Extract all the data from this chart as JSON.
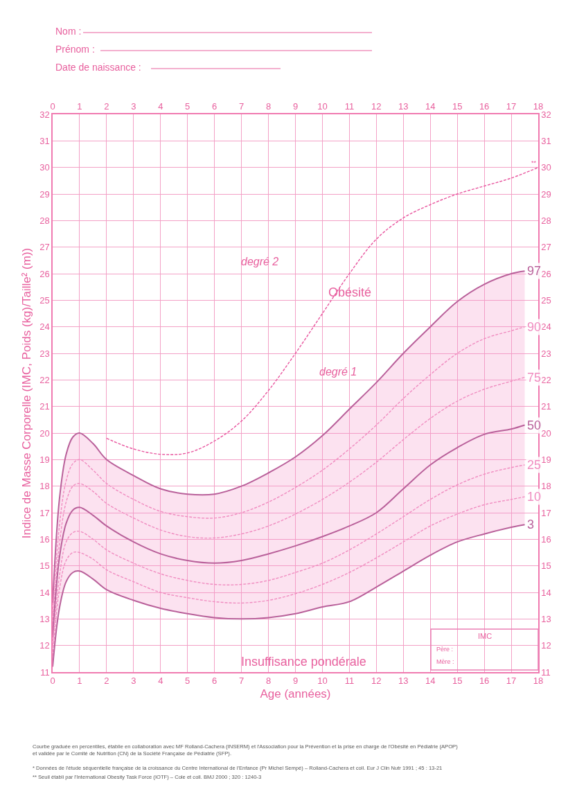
{
  "chart_data": {
    "type": "line",
    "xlabel": "Age (années)",
    "ylabel": "Indice de Masse Corporelle (IMC, Poids (kg)/Taille² (m))",
    "x": [
      0,
      0.25,
      0.5,
      0.75,
      1,
      1.5,
      2,
      3,
      4,
      5,
      6,
      7,
      8,
      9,
      10,
      11,
      12,
      13,
      14,
      15,
      16,
      17,
      17.5
    ],
    "series": [
      {
        "name": "97",
        "color": "#b9609a",
        "line_style": "solid",
        "values": [
          13.6,
          17.5,
          19.2,
          19.85,
          20.0,
          19.6,
          19.0,
          18.4,
          17.9,
          17.7,
          17.7,
          18.0,
          18.5,
          19.1,
          19.9,
          20.9,
          21.9,
          23.0,
          24.0,
          24.95,
          25.6,
          26.0,
          26.1
        ]
      },
      {
        "name": "90",
        "color": "#f08cc0",
        "line_style": "dashed",
        "values": [
          13.2,
          16.5,
          18.2,
          18.85,
          19.0,
          18.6,
          18.1,
          17.5,
          17.05,
          16.85,
          16.8,
          17.0,
          17.4,
          17.95,
          18.6,
          19.4,
          20.3,
          21.3,
          22.2,
          23.0,
          23.55,
          23.85,
          24.0
        ]
      },
      {
        "name": "75",
        "color": "#f08cc0",
        "line_style": "dashed",
        "values": [
          12.8,
          15.8,
          17.4,
          18.0,
          18.1,
          17.8,
          17.35,
          16.8,
          16.35,
          16.1,
          16.05,
          16.2,
          16.5,
          16.95,
          17.5,
          18.15,
          18.9,
          19.75,
          20.55,
          21.2,
          21.65,
          21.95,
          22.1
        ]
      },
      {
        "name": "50",
        "color": "#b9609a",
        "line_style": "solid",
        "values": [
          12.3,
          15.3,
          16.6,
          17.1,
          17.2,
          16.9,
          16.5,
          15.9,
          15.45,
          15.2,
          15.1,
          15.2,
          15.45,
          15.75,
          16.1,
          16.5,
          17.0,
          17.9,
          18.8,
          19.45,
          19.95,
          20.15,
          20.3
        ],
        "lower": [
          11.2,
          13.4,
          14.4,
          14.75,
          14.8,
          14.5,
          14.1,
          13.7,
          13.4,
          13.2,
          13.05,
          13.0,
          13.05,
          13.2,
          13.45,
          13.65,
          14.2,
          14.8,
          15.4,
          15.9,
          16.2,
          16.45,
          16.55
        ],
        "upper": [
          13.6,
          17.5,
          19.2,
          19.85,
          20.0,
          19.6,
          19.0,
          18.4,
          17.9,
          17.7,
          17.7,
          18.0,
          18.5,
          19.1,
          19.9,
          20.9,
          21.9,
          23.0,
          24.0,
          24.95,
          25.6,
          26.0,
          26.1
        ]
      },
      {
        "name": "25",
        "color": "#f08cc0",
        "line_style": "dashed",
        "values": [
          12.0,
          14.6,
          15.9,
          16.25,
          16.3,
          16.0,
          15.6,
          15.1,
          14.7,
          14.45,
          14.3,
          14.3,
          14.45,
          14.75,
          15.1,
          15.6,
          16.2,
          16.85,
          17.5,
          18.05,
          18.45,
          18.7,
          18.8
        ]
      },
      {
        "name": "10",
        "color": "#f08cc0",
        "line_style": "dashed",
        "values": [
          11.6,
          14.1,
          15.2,
          15.5,
          15.5,
          15.25,
          14.85,
          14.4,
          14.0,
          13.8,
          13.65,
          13.6,
          13.7,
          13.95,
          14.3,
          14.75,
          15.3,
          15.9,
          16.5,
          16.95,
          17.3,
          17.5,
          17.6
        ]
      },
      {
        "name": "3",
        "color": "#b9609a",
        "line_style": "solid",
        "values": [
          11.2,
          13.4,
          14.4,
          14.75,
          14.8,
          14.5,
          14.1,
          13.7,
          13.4,
          13.2,
          13.05,
          13.0,
          13.05,
          13.2,
          13.45,
          13.65,
          14.2,
          14.8,
          15.4,
          15.9,
          16.2,
          16.45,
          16.55
        ]
      },
      {
        "name": "**",
        "color": "#e8559e",
        "line_style": "dashed",
        "x": [
          2,
          3,
          4,
          5,
          6,
          7,
          8,
          9,
          10,
          11,
          12,
          13,
          14,
          15,
          16,
          17,
          18
        ],
        "values": [
          19.8,
          19.4,
          19.2,
          19.25,
          19.7,
          20.45,
          21.6,
          23.0,
          24.5,
          26.0,
          27.3,
          28.1,
          28.6,
          29.0,
          29.3,
          29.6,
          30.0
        ]
      }
    ],
    "xlim": [
      0,
      18
    ],
    "xticks": [
      0,
      1,
      2,
      3,
      4,
      5,
      6,
      7,
      8,
      9,
      10,
      11,
      12,
      13,
      14,
      15,
      16,
      17,
      18
    ],
    "x2lim": [
      0,
      18
    ],
    "x2ticks": [
      0,
      1,
      2,
      3,
      4,
      5,
      6,
      7,
      8,
      9,
      10,
      11,
      12,
      13,
      14,
      15,
      16,
      17,
      18
    ],
    "ylim": [
      11,
      32
    ],
    "yticks": [
      11,
      12,
      13,
      14,
      15,
      16,
      17,
      18,
      19,
      20,
      21,
      22,
      23,
      24,
      25,
      26,
      27,
      28,
      29,
      30,
      31,
      32
    ],
    "y2lim": [
      11,
      32
    ],
    "y2ticks": [
      11,
      12,
      13,
      14,
      15,
      16,
      17,
      18,
      19,
      20,
      21,
      22,
      23,
      24,
      25,
      26,
      27,
      28,
      29,
      30,
      31,
      32
    ],
    "grid": true,
    "legend": false,
    "marker": "none",
    "annotations": [
      "degré 2",
      "Obésité",
      "degré 1",
      "Insuffisance pondérale",
      "Nom :",
      "Prénom :",
      "Date de naissance :",
      "IMC",
      "Père :",
      "Mère :",
      "Courbe graduée en percentiles, établie en collaboration avec MF Rolland-Cachera (INSERM) et l'Association pour la Prévention et la prise en charge de l'Obésité en Pédiatrie (APOP)\net validée par le Comité de Nutrition (CN) de la Société Française de Pédiatrie (SFP).",
      "* Données de l'étude séquentielle française de la croissance du Centre International de l'Enfance (Pr Michel Sempé) – Rolland-Cachera et coll. Eur J Clin Nutr 1991 ; 45 : 13-21",
      "** Seuil établi par l'International Obesity Task Force (IOTF) – Cole et coll. BMJ 2000 ; 320 : 1240-3"
    ]
  }
}
